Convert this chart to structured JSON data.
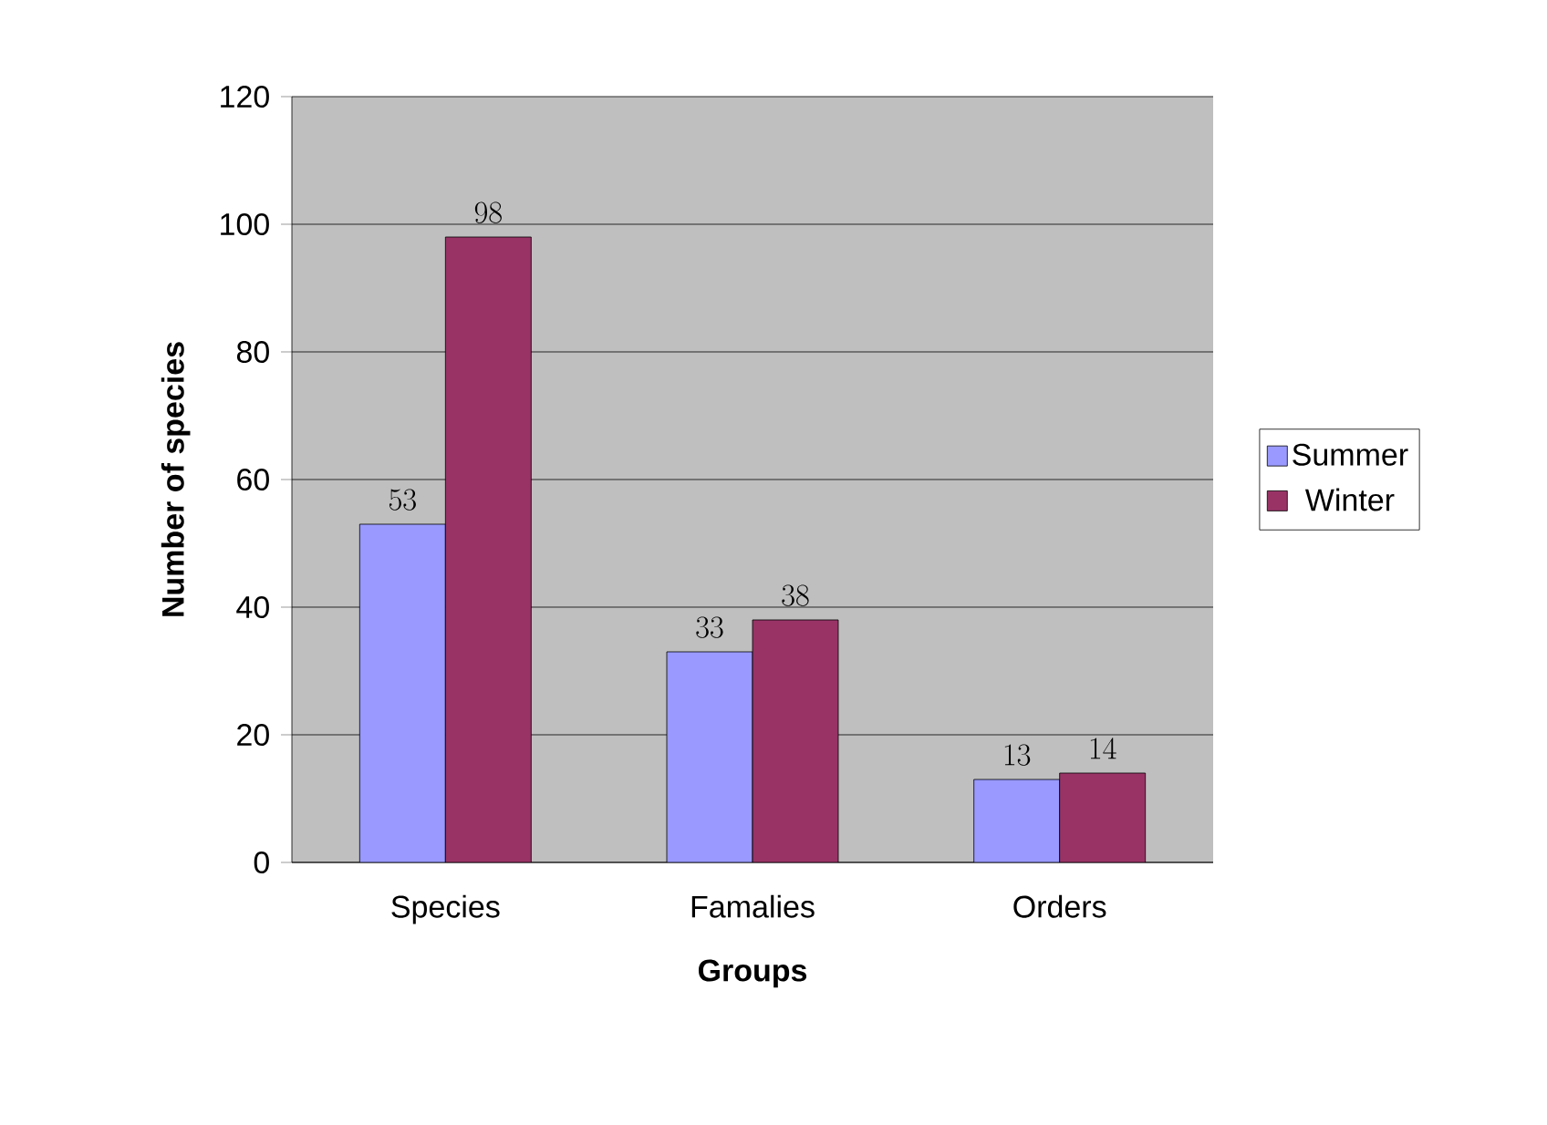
{
  "chart_data": {
    "type": "bar",
    "xlabel": "Groups",
    "ylabel": "Number of species",
    "categories": [
      "Species",
      "Famalies",
      "Orders"
    ],
    "series": [
      {
        "name": "Summer",
        "color": "#9999ff",
        "values": [
          53,
          33,
          13
        ]
      },
      {
        "name": "Winter",
        "color": "#993366",
        "values": [
          98,
          38,
          14
        ]
      }
    ],
    "ylim": [
      0,
      120
    ],
    "yticks": [
      0,
      20,
      40,
      60,
      80,
      100,
      120
    ],
    "grid": "y",
    "legend": "right",
    "data_labels": true
  }
}
